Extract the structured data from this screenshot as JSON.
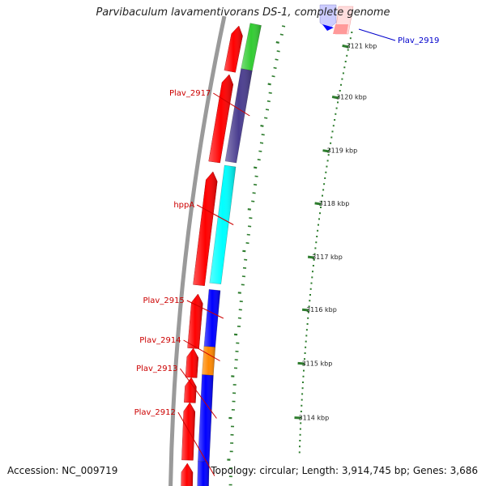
{
  "title": "Parvibaculum lavamentivorans DS-1, complete genome",
  "accession": "Accession: NC_009719",
  "topology": "Topology: circular; Length: 3,914,745 bp; Genes: 3,686",
  "colors": {
    "reverse_cds": "#ff0000",
    "backbone": "#9a9a9a",
    "tick": "#2e7d2e",
    "label_red": "#cc0000",
    "label_blue": "#0000cc"
  },
  "scale_ticks": [
    {
      "label": "3121 kbp"
    },
    {
      "label": "3120 kbp"
    },
    {
      "label": "3119 kbp"
    },
    {
      "label": "3118 kbp"
    },
    {
      "label": "3117 kbp"
    },
    {
      "label": "3116 kbp"
    },
    {
      "label": "3115 kbp"
    },
    {
      "label": "3114 kbp"
    }
  ],
  "forward_genes": [
    {
      "color": "#33cc33"
    },
    {
      "name": "Plav_2917",
      "color": "#4a3d8f"
    },
    {
      "name": "hppA",
      "color": "#00ffff"
    },
    {
      "name": "Plav_2915",
      "color": "#0000ff"
    },
    {
      "name": "Plav_2914",
      "color": "#ff8800"
    },
    {
      "name": "Plav_2913",
      "color": "#0000ff"
    },
    {
      "name": "Plav_2912",
      "color": "#0000ff"
    }
  ],
  "outer_features": [
    {
      "name": "Plav_2919",
      "color": "#0000ff"
    },
    {
      "color": "#ff9999"
    }
  ]
}
